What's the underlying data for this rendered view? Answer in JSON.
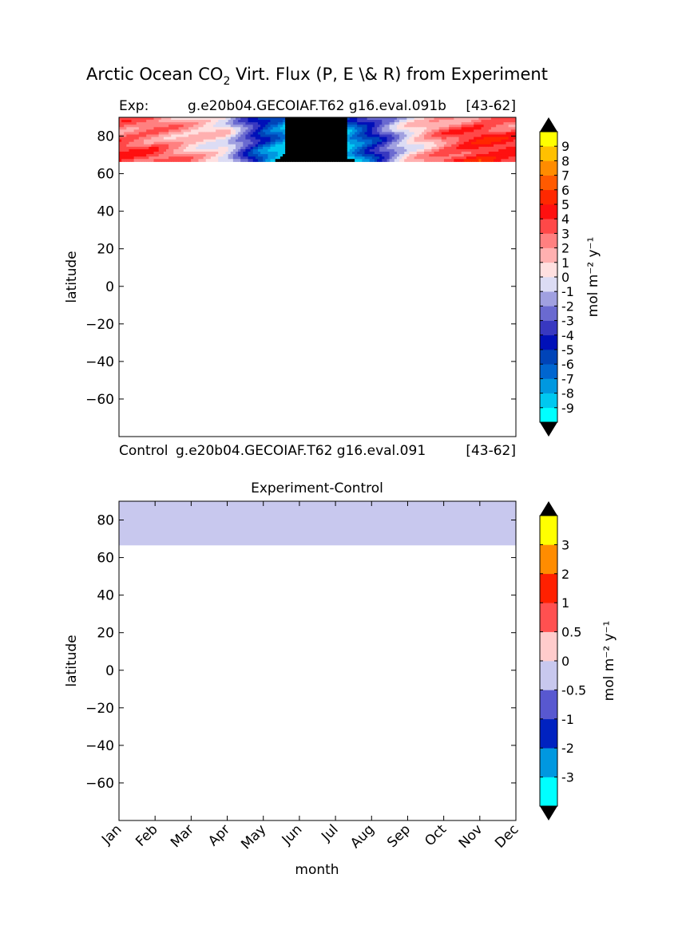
{
  "figure": {
    "suptitle_pre": "Arctic Ocean CO",
    "suptitle_sub": "2",
    "suptitle_post": " Virt. Flux (P, E \\& R) from Experiment"
  },
  "chart_data": [
    {
      "type": "heatmap",
      "panel": "top",
      "title_left": "Exp:",
      "title_center": "g.e20b04.GECOIAF.T62 g16.eval.091b",
      "title_right": "[43-62]",
      "footer_left": "Control",
      "footer_center": "g.e20b04.GECOIAF.T62 g16.eval.091",
      "footer_right": "[43-62]",
      "xlabel": "",
      "ylabel": "latitude",
      "ylim": [
        -80,
        90
      ],
      "yticks": [
        "80",
        "60",
        "40",
        "20",
        "0",
        "−20",
        "−40",
        "−60"
      ],
      "ytick_values": [
        80,
        60,
        40,
        20,
        0,
        -20,
        -40,
        -60
      ],
      "data_lat_range": [
        66.5,
        90
      ],
      "month_profile": {
        "months": [
          "Jan",
          "Feb",
          "Mar",
          "Apr",
          "May",
          "Jun",
          "Jul",
          "Aug",
          "Sep",
          "Oct",
          "Nov",
          "Dec"
        ],
        "flux_mean": [
          3.5,
          3,
          1.5,
          0,
          -6,
          -10,
          -10,
          -5,
          0,
          3,
          4.5,
          4
        ]
      },
      "colorbar": {
        "unit": "mol m⁻² y⁻¹",
        "levels": [
          "-9",
          "-8",
          "-7",
          "-6",
          "-5",
          "-4",
          "-3",
          "-2",
          "-1",
          "0",
          "1",
          "2",
          "3",
          "4",
          "5",
          "6",
          "7",
          "8",
          "9"
        ],
        "colors": [
          "#00ffff",
          "#00c8f0",
          "#0098e0",
          "#0066d0",
          "#0044b8",
          "#0010b8",
          "#3838c0",
          "#6a6ad0",
          "#a0a0e0",
          "#dcdcf4",
          "#ffe0e0",
          "#ffb0b0",
          "#ff8080",
          "#ff4848",
          "#ff1010",
          "#ff2800",
          "#ff5a00",
          "#ff8c00",
          "#ffc000",
          "#ffff00"
        ],
        "extend": "both"
      }
    },
    {
      "type": "heatmap",
      "panel": "bottom",
      "title": "Experiment-Control",
      "xlabel": "month",
      "ylabel": "latitude",
      "categories": [
        "Jan",
        "Feb",
        "Mar",
        "Apr",
        "May",
        "Jun",
        "Jul",
        "Aug",
        "Sep",
        "Oct",
        "Nov",
        "Dec"
      ],
      "ylim": [
        -80,
        90
      ],
      "yticks": [
        "80",
        "60",
        "40",
        "20",
        "0",
        "−20",
        "−40",
        "−60"
      ],
      "ytick_values": [
        80,
        60,
        40,
        20,
        0,
        -20,
        -40,
        -60
      ],
      "data_lat_range": [
        66.5,
        90
      ],
      "difference_value_band": [
        -0.5,
        0
      ],
      "fill_color": "#c8c8ee",
      "colorbar": {
        "unit": "mol m⁻² y⁻¹",
        "levels": [
          "-3",
          "-2",
          "-1",
          "-0.5",
          "0",
          "0.5",
          "1",
          "2",
          "3"
        ],
        "colors": [
          "#00ffff",
          "#0098e0",
          "#0022c0",
          "#5858d0",
          "#c8c8ee",
          "#ffcccc",
          "#ff5050",
          "#ff2000",
          "#ff8c00",
          "#ffff00"
        ],
        "extend": "both"
      }
    }
  ]
}
